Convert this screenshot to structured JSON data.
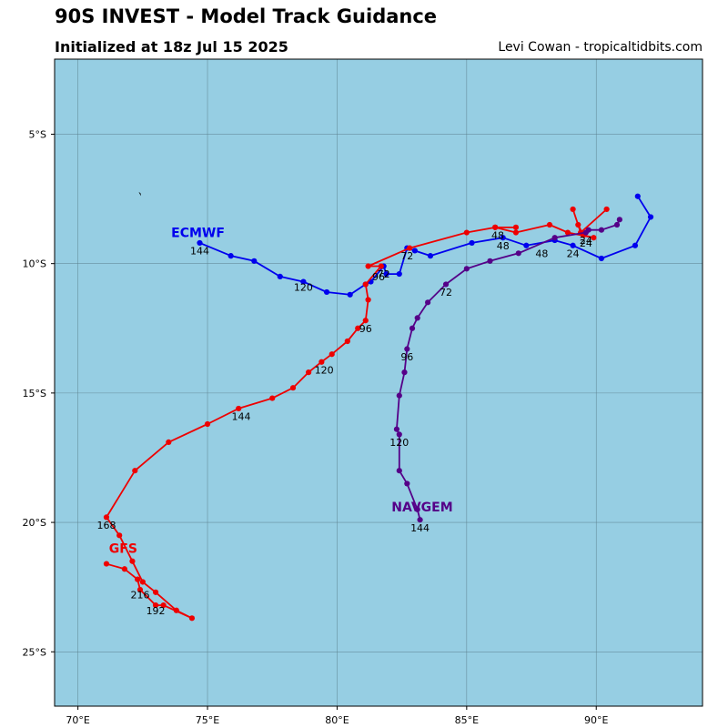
{
  "title": "90S INVEST - Model Track Guidance",
  "subtitle": "Initialized at 18z Jul 15 2025",
  "credit": "Levi Cowan - tropicaltidbits.com",
  "colors": {
    "ocean": "#96cee3",
    "grid": "#5a7f8c",
    "frame": "#000000"
  },
  "map": {
    "lon_range": [
      69.1,
      94.1
    ],
    "lat_range": [
      -27.1,
      -2.1
    ]
  },
  "lon_ticks": [
    {
      "value": 70,
      "label": "70°E"
    },
    {
      "value": 75,
      "label": "75°E"
    },
    {
      "value": 80,
      "label": "80°E"
    },
    {
      "value": 85,
      "label": "85°E"
    },
    {
      "value": 90,
      "label": "90°E"
    }
  ],
  "lat_ticks": [
    {
      "value": -5,
      "label": "5°S"
    },
    {
      "value": -10,
      "label": "10°S"
    },
    {
      "value": -15,
      "label": "15°S"
    },
    {
      "value": -20,
      "label": "20°S"
    },
    {
      "value": -25,
      "label": "25°S"
    }
  ],
  "island": {
    "lon": 72.4,
    "lat": -7.3,
    "name": "island-marker"
  },
  "models": [
    {
      "name": "ECMWF",
      "color": "#0000ee",
      "label_pos": {
        "lon": 73.6,
        "lat": -8.8
      },
      "track": [
        [
          91.6,
          -7.4
        ],
        [
          92.1,
          -8.2
        ],
        [
          91.5,
          -9.3
        ],
        [
          90.2,
          -9.8
        ],
        [
          89.1,
          -9.3
        ],
        [
          88.4,
          -9.1
        ],
        [
          87.3,
          -9.3
        ],
        [
          86.4,
          -9.0
        ],
        [
          85.2,
          -9.2
        ],
        [
          83.6,
          -9.7
        ],
        [
          83.0,
          -9.5
        ],
        [
          82.7,
          -9.4
        ],
        [
          82.4,
          -10.4
        ],
        [
          81.9,
          -10.4
        ],
        [
          81.8,
          -10.1
        ],
        [
          81.3,
          -10.7
        ],
        [
          81.1,
          -10.8
        ],
        [
          80.5,
          -11.2
        ],
        [
          79.6,
          -11.1
        ],
        [
          78.7,
          -10.7
        ],
        [
          77.8,
          -10.5
        ],
        [
          76.8,
          -9.9
        ],
        [
          75.9,
          -9.7
        ],
        [
          74.7,
          -9.2
        ]
      ],
      "labels": [
        {
          "text": "24",
          "lon": 89.1,
          "lat": -9.6
        },
        {
          "text": "48",
          "lon": 87.9,
          "lat": -9.6
        },
        {
          "text": "72",
          "lon": 82.7,
          "lat": -9.7
        },
        {
          "text": "96",
          "lon": 81.6,
          "lat": -10.5
        },
        {
          "text": "120",
          "lon": 78.7,
          "lat": -10.9
        },
        {
          "text": "144",
          "lon": 74.7,
          "lat": -9.5
        }
      ]
    },
    {
      "name": "GFS",
      "color": "#ee0000",
      "label_pos": {
        "lon": 71.2,
        "lat": -21.0
      },
      "track": [
        [
          90.4,
          -7.9
        ],
        [
          89.4,
          -8.8
        ],
        [
          89.1,
          -7.9
        ],
        [
          89.3,
          -8.5
        ],
        [
          89.5,
          -8.9
        ],
        [
          89.9,
          -9.0
        ],
        [
          88.9,
          -8.8
        ],
        [
          88.2,
          -8.5
        ],
        [
          86.9,
          -8.8
        ],
        [
          86.1,
          -8.6
        ],
        [
          86.9,
          -8.6
        ],
        [
          86.1,
          -8.6
        ],
        [
          85.0,
          -8.8
        ],
        [
          82.8,
          -9.4
        ],
        [
          81.2,
          -10.1
        ],
        [
          81.7,
          -10.1
        ],
        [
          81.1,
          -10.8
        ],
        [
          81.2,
          -11.4
        ],
        [
          81.1,
          -12.2
        ],
        [
          80.8,
          -12.5
        ],
        [
          80.4,
          -13.0
        ],
        [
          79.8,
          -13.5
        ],
        [
          79.4,
          -13.8
        ],
        [
          78.9,
          -14.2
        ],
        [
          78.3,
          -14.8
        ],
        [
          77.5,
          -15.2
        ],
        [
          76.2,
          -15.6
        ],
        [
          75.0,
          -16.2
        ],
        [
          73.5,
          -16.9
        ],
        [
          72.2,
          -18.0
        ],
        [
          71.1,
          -19.8
        ],
        [
          71.6,
          -20.5
        ],
        [
          72.1,
          -21.5
        ],
        [
          72.5,
          -22.3
        ],
        [
          73.0,
          -22.7
        ],
        [
          73.8,
          -23.4
        ],
        [
          74.4,
          -23.7
        ],
        [
          73.3,
          -23.2
        ],
        [
          73.0,
          -23.2
        ],
        [
          72.4,
          -22.6
        ],
        [
          72.3,
          -22.2
        ],
        [
          71.8,
          -21.8
        ],
        [
          71.1,
          -21.6
        ]
      ],
      "labels": [
        {
          "text": "24",
          "lon": 89.6,
          "lat": -9.2
        },
        {
          "text": "48",
          "lon": 86.2,
          "lat": -8.9
        },
        {
          "text": "72",
          "lon": 81.8,
          "lat": -10.4
        },
        {
          "text": "96",
          "lon": 81.1,
          "lat": -12.5
        },
        {
          "text": "120",
          "lon": 79.5,
          "lat": -14.1
        },
        {
          "text": "144",
          "lon": 76.3,
          "lat": -15.9
        },
        {
          "text": "168",
          "lon": 71.1,
          "lat": -20.1
        },
        {
          "text": "192",
          "lon": 73.0,
          "lat": -23.4
        },
        {
          "text": "216",
          "lon": 72.4,
          "lat": -22.8
        }
      ]
    },
    {
      "name": "NAVGEM",
      "color": "#550088",
      "label_pos": {
        "lon": 82.1,
        "lat": -19.4
      },
      "track": [
        [
          90.9,
          -8.3
        ],
        [
          90.8,
          -8.5
        ],
        [
          90.2,
          -8.7
        ],
        [
          89.7,
          -8.7
        ],
        [
          89.6,
          -8.8
        ],
        [
          88.4,
          -9.0
        ],
        [
          87.0,
          -9.6
        ],
        [
          85.9,
          -9.9
        ],
        [
          85.0,
          -10.2
        ],
        [
          84.2,
          -10.8
        ],
        [
          83.5,
          -11.5
        ],
        [
          83.1,
          -12.1
        ],
        [
          82.9,
          -12.5
        ],
        [
          82.7,
          -13.3
        ],
        [
          82.6,
          -14.2
        ],
        [
          82.4,
          -15.1
        ],
        [
          82.3,
          -16.4
        ],
        [
          82.4,
          -16.6
        ],
        [
          82.4,
          -18.0
        ],
        [
          82.7,
          -18.5
        ],
        [
          83.1,
          -19.5
        ],
        [
          83.2,
          -19.9
        ]
      ],
      "labels": [
        {
          "text": "24",
          "lon": 89.6,
          "lat": -9.1
        },
        {
          "text": "48",
          "lon": 86.4,
          "lat": -9.3
        },
        {
          "text": "72",
          "lon": 84.2,
          "lat": -11.1
        },
        {
          "text": "96",
          "lon": 82.7,
          "lat": -13.6
        },
        {
          "text": "120",
          "lon": 82.4,
          "lat": -16.9
        },
        {
          "text": "144",
          "lon": 83.2,
          "lat": -20.2
        }
      ]
    }
  ]
}
